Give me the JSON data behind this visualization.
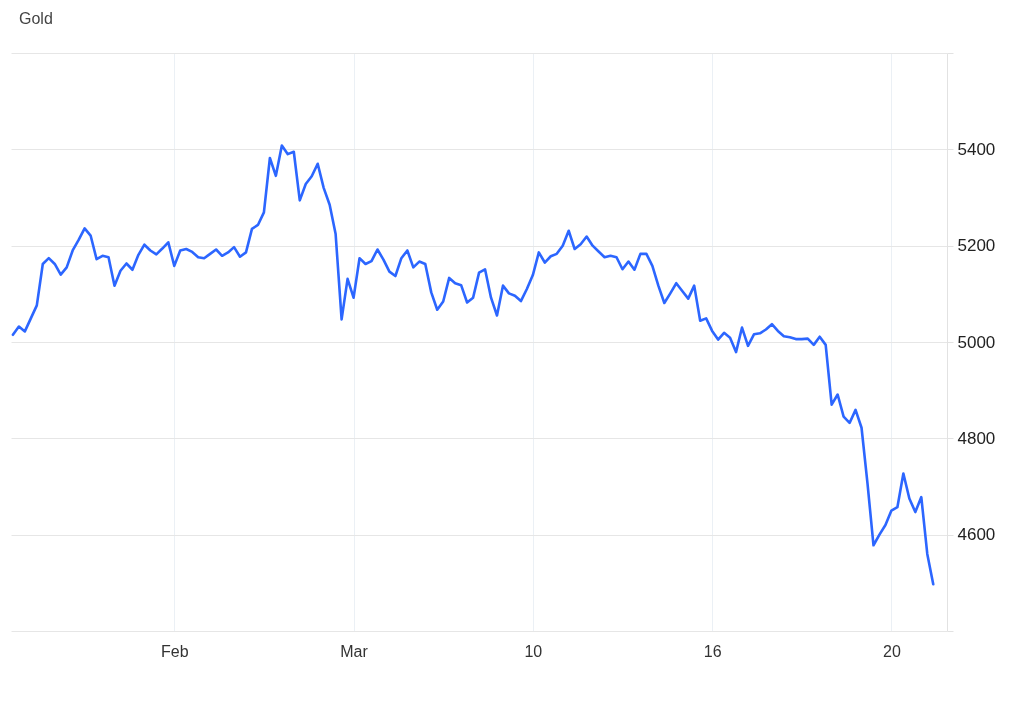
{
  "chart_data": {
    "type": "line",
    "title": "Gold",
    "categories": [
      null,
      null,
      null,
      null,
      null,
      null,
      null,
      null,
      null,
      null,
      null,
      null,
      null,
      null,
      null,
      null,
      null,
      null,
      null,
      null,
      null,
      null,
      null,
      null,
      null,
      null,
      null,
      "Feb",
      null,
      null,
      null,
      null,
      null,
      null,
      null,
      null,
      null,
      null,
      null,
      null,
      null,
      null,
      null,
      null,
      null,
      null,
      null,
      null,
      null,
      null,
      null,
      null,
      null,
      null,
      null,
      null,
      null,
      "Mar",
      null,
      null,
      null,
      null,
      null,
      null,
      null,
      null,
      null,
      null,
      null,
      null,
      null,
      null,
      null,
      null,
      null,
      null,
      null,
      null,
      null,
      null,
      null,
      null,
      null,
      null,
      null,
      null,
      null,
      "10",
      null,
      null,
      null,
      null,
      null,
      null,
      null,
      null,
      null,
      null,
      null,
      null,
      null,
      null,
      null,
      null,
      null,
      null,
      null,
      null,
      null,
      null,
      null,
      null,
      null,
      null,
      null,
      null,
      null,
      "16",
      null,
      null,
      null,
      null,
      null,
      null,
      null,
      null,
      null,
      null,
      null,
      null,
      null,
      null,
      null,
      null,
      null,
      null,
      null,
      null,
      null,
      null,
      null,
      null,
      null,
      null,
      null,
      null,
      null,
      "20",
      null,
      null,
      null,
      null,
      null,
      null,
      null
    ],
    "series": [
      {
        "color": "#2c66ff",
        "values": [
          5015,
          5032,
          5022,
          5049,
          5076,
          5162,
          5174,
          5162,
          5140,
          5155,
          5190,
          5212,
          5236,
          5221,
          5172,
          5179,
          5176,
          5117,
          5148,
          5163,
          5150,
          5181,
          5202,
          5190,
          5182,
          5194,
          5207,
          5158,
          5190,
          5193,
          5187,
          5176,
          5174,
          5183,
          5192,
          5179,
          5186,
          5197,
          5177,
          5186,
          5235,
          5243,
          5269,
          5382,
          5345,
          5408,
          5390,
          5395,
          5294,
          5328,
          5344,
          5370,
          5320,
          5285,
          5224,
          5047,
          5131,
          5092,
          5174,
          5162,
          5168,
          5192,
          5171,
          5146,
          5137,
          5174,
          5190,
          5155,
          5167,
          5162,
          5103,
          5067,
          5084,
          5133,
          5122,
          5118,
          5082,
          5092,
          5144,
          5151,
          5092,
          5055,
          5117,
          5101,
          5096,
          5085,
          5110,
          5139,
          5186,
          5165,
          5178,
          5183,
          5200,
          5231,
          5193,
          5203,
          5219,
          5200,
          5188,
          5176,
          5179,
          5176,
          5151,
          5167,
          5150,
          5183,
          5183,
          5158,
          5117,
          5081,
          5101,
          5122,
          5106,
          5090,
          5117,
          5044,
          5049,
          5023,
          5005,
          5019,
          5009,
          4979,
          5030,
          4992,
          5016,
          5018,
          5026,
          5037,
          5023,
          5012,
          5010,
          5006,
          5006,
          5007,
          4994,
          5011,
          4994,
          4870,
          4891,
          4845,
          4832,
          4859,
          4822,
          4706,
          4578,
          4600,
          4620,
          4650,
          4657,
          4727,
          4675,
          4647,
          4678,
          4560,
          4497
        ]
      }
    ],
    "ylim": [
      4400,
      5600
    ],
    "yticks": [
      {
        "value": 4400,
        "label": null
      },
      4600,
      4800,
      5000,
      5200,
      5400,
      {
        "value": 5600,
        "label": null
      }
    ],
    "grid": true
  }
}
